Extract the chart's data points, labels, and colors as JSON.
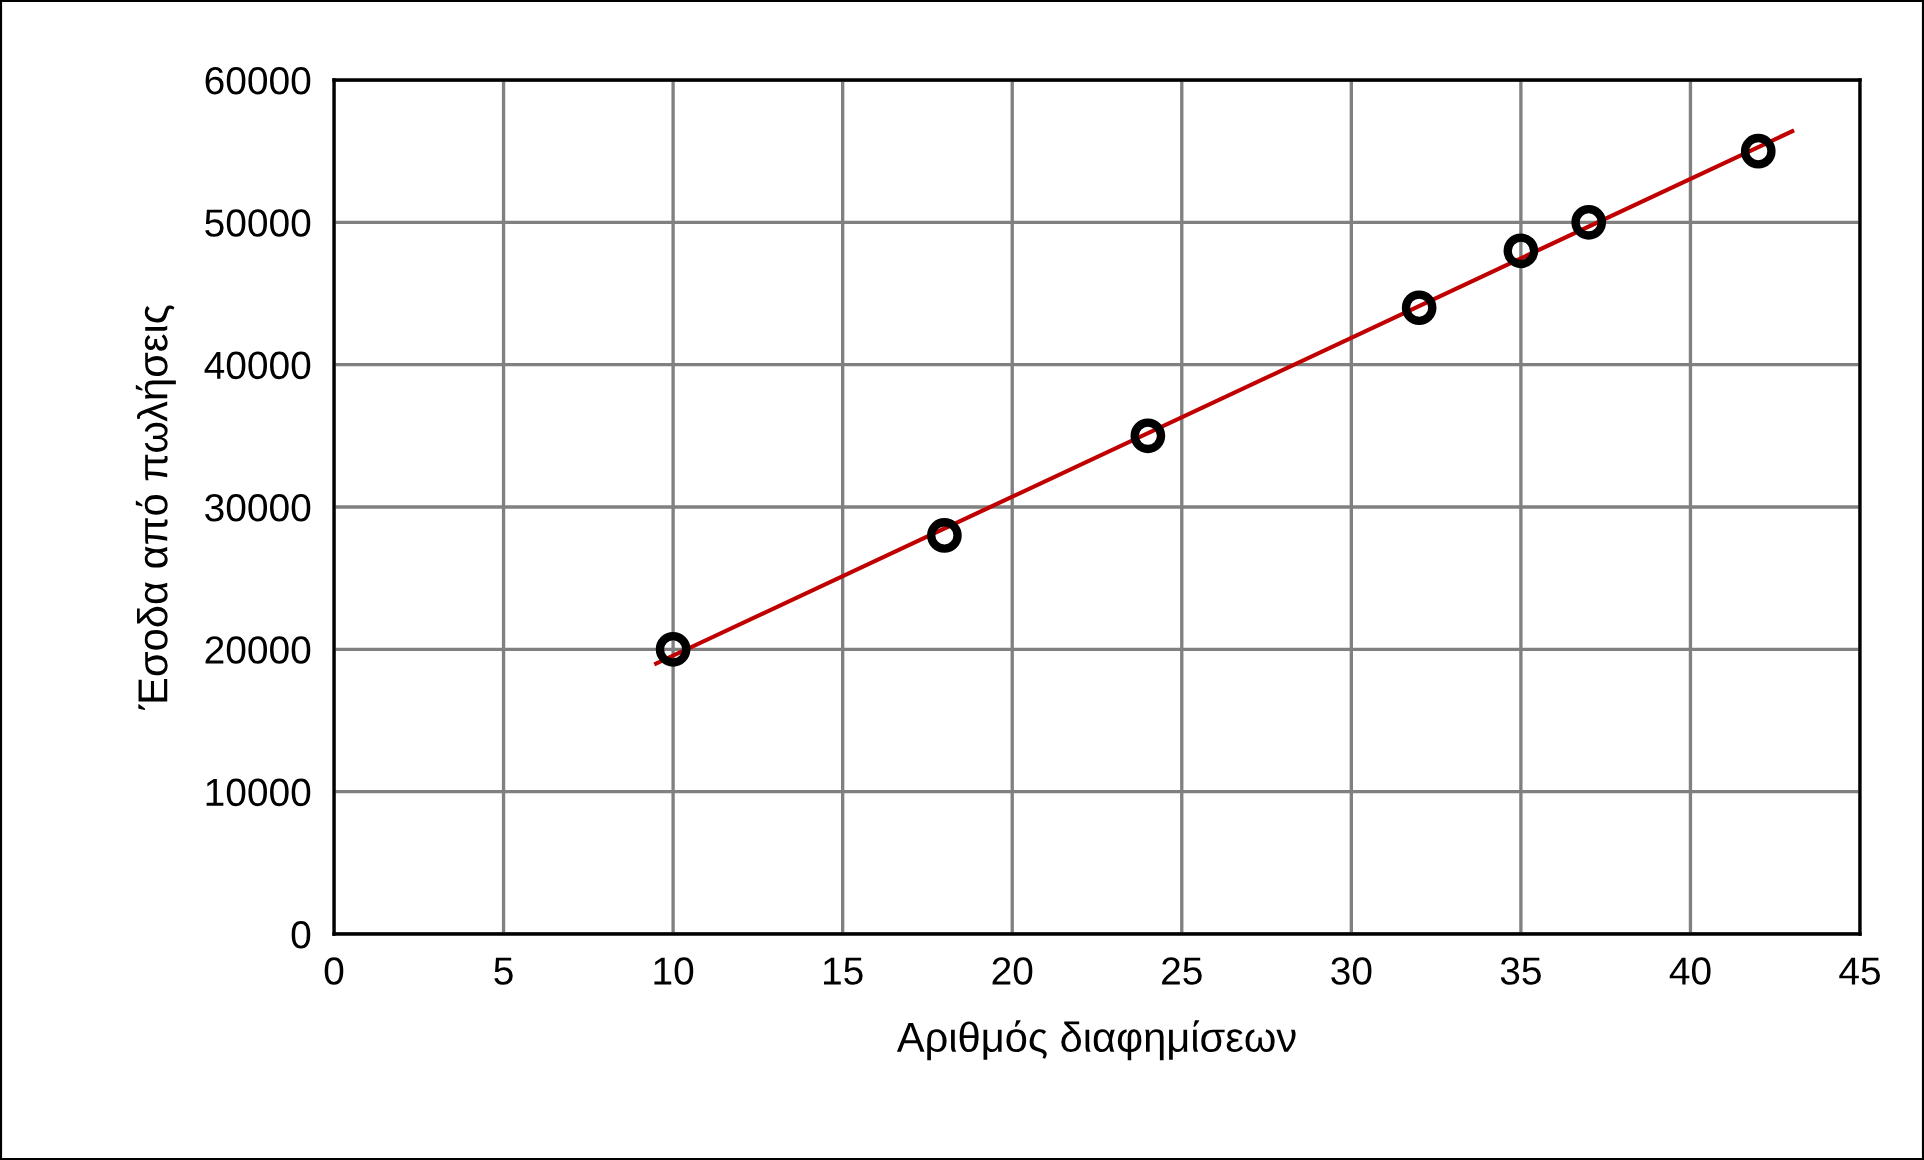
{
  "chart_data": {
    "type": "scatter",
    "xlabel": "Αριθμός διαφημίσεων",
    "ylabel": "Έσοδα από πωλήσεις",
    "series": [
      {
        "color": "#000000",
        "marker": "circle",
        "x": [
          10,
          18,
          24,
          32,
          35,
          37,
          42
        ],
        "values": [
          20000,
          28000,
          35000,
          44000,
          48000,
          50000,
          55000
        ]
      },
      {
        "type": "line",
        "color": "#c00000",
        "marker": "none",
        "x": [
          9.5,
          43
        ],
        "values": [
          19000,
          56400
        ]
      }
    ],
    "xlim": [
      0,
      45
    ],
    "xticks": [
      0,
      5,
      10,
      15,
      20,
      25,
      30,
      35,
      40,
      45
    ],
    "ylim": [
      0,
      60000
    ],
    "yticks": [
      0,
      10000,
      20000,
      30000,
      40000,
      50000,
      60000
    ],
    "grid": true,
    "legend": false
  }
}
